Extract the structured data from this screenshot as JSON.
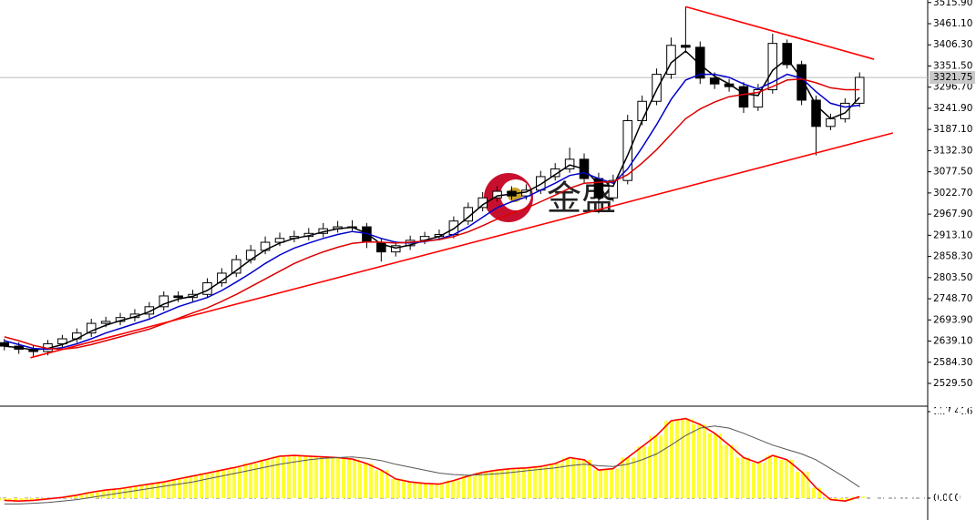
{
  "chart_data": [
    {
      "type": "candlestick",
      "watermark": "金盛",
      "xlim": [
        -0.3,
        63.7
      ],
      "ylim": [
        2472.9,
        3522.4
      ],
      "yticks": [
        {
          "value": 2529.5,
          "label": "2529.50"
        },
        {
          "value": 2584.3,
          "label": "2584.30"
        },
        {
          "value": 2639.1,
          "label": "2639.10"
        },
        {
          "value": 2693.9,
          "label": "2693.90"
        },
        {
          "value": 2748.7,
          "label": "2748.70"
        },
        {
          "value": 2803.5,
          "label": "2803.50"
        },
        {
          "value": 2858.3,
          "label": "2858.30"
        },
        {
          "value": 2913.1,
          "label": "2913.10"
        },
        {
          "value": 2967.9,
          "label": "2967.90"
        },
        {
          "value": 3022.7,
          "label": "3022.70"
        },
        {
          "value": 3077.5,
          "label": "3077.50"
        },
        {
          "value": 3132.3,
          "label": "3132.30"
        },
        {
          "value": 3187.1,
          "label": "3187.10"
        },
        {
          "value": 3241.9,
          "label": "3241.90"
        },
        {
          "value": 3296.7,
          "label": "3296.70"
        },
        {
          "value": 3351.5,
          "label": "3351.50"
        },
        {
          "value": 3406.3,
          "label": "3406.30"
        },
        {
          "value": 3461.1,
          "label": "3461.10"
        },
        {
          "value": 3515.9,
          "label": "3515.90"
        }
      ],
      "current_price": {
        "value": 3321.75,
        "label": "3321.75"
      },
      "open": [
        2635,
        2626,
        2618,
        2612,
        2632,
        2645,
        2660,
        2685,
        2690,
        2700,
        2709,
        2728,
        2756,
        2752,
        2760,
        2790,
        2815,
        2850,
        2874,
        2895,
        2905,
        2910,
        2918,
        2930,
        2935,
        2935,
        2895,
        2870,
        2886,
        2900,
        2910,
        2915,
        2950,
        2985,
        3010,
        3027,
        3015,
        3030,
        3065,
        3085,
        3110,
        3060,
        3010,
        3055,
        3210,
        3260,
        3330,
        3405,
        3400,
        3320,
        3305,
        3298,
        3245,
        3290,
        3410,
        3355,
        3263,
        3195,
        3215,
        3255
      ],
      "high": [
        2645,
        2636,
        2628,
        2642,
        2655,
        2672,
        2697,
        2702,
        2712,
        2722,
        2740,
        2768,
        2768,
        2772,
        2802,
        2828,
        2862,
        2888,
        2910,
        2920,
        2925,
        2932,
        2945,
        2950,
        2952,
        2945,
        2905,
        2898,
        2912,
        2922,
        2928,
        2962,
        2998,
        3025,
        3040,
        3040,
        3045,
        3080,
        3100,
        3140,
        3125,
        3075,
        3070,
        3225,
        3275,
        3345,
        3425,
        3505,
        3415,
        3335,
        3318,
        3310,
        3305,
        3435,
        3420,
        3365,
        3275,
        3228,
        3268,
        3335
      ],
      "low": [
        2615,
        2606,
        2600,
        2602,
        2622,
        2635,
        2650,
        2675,
        2680,
        2690,
        2698,
        2718,
        2740,
        2742,
        2750,
        2780,
        2805,
        2840,
        2864,
        2885,
        2895,
        2900,
        2908,
        2920,
        2925,
        2880,
        2845,
        2858,
        2875,
        2890,
        2900,
        2905,
        2940,
        2975,
        3000,
        3005,
        3005,
        3020,
        3055,
        3075,
        3048,
        2970,
        3000,
        3045,
        3198,
        3250,
        3318,
        3385,
        3305,
        3292,
        3285,
        3230,
        3235,
        3280,
        3345,
        3250,
        3120,
        3185,
        3205,
        3245
      ],
      "close": [
        2626,
        2618,
        2612,
        2632,
        2645,
        2660,
        2685,
        2690,
        2700,
        2709,
        2728,
        2756,
        2752,
        2760,
        2790,
        2815,
        2850,
        2874,
        2895,
        2905,
        2910,
        2918,
        2930,
        2935,
        2935,
        2895,
        2870,
        2886,
        2900,
        2910,
        2915,
        2950,
        2985,
        3010,
        3027,
        3015,
        3030,
        3065,
        3085,
        3110,
        3060,
        3010,
        3055,
        3210,
        3260,
        3330,
        3405,
        3400,
        3320,
        3305,
        3298,
        3245,
        3290,
        3410,
        3355,
        3263,
        3195,
        3215,
        3255,
        3322
      ],
      "series": [
        {
          "color": "#000000",
          "values": [
            2626,
            2622,
            2616,
            2620,
            2630,
            2645,
            2665,
            2680,
            2692,
            2702,
            2715,
            2735,
            2748,
            2755,
            2770,
            2795,
            2822,
            2850,
            2875,
            2893,
            2905,
            2912,
            2922,
            2930,
            2934,
            2918,
            2890,
            2880,
            2888,
            2900,
            2910,
            2930,
            2960,
            2992,
            3015,
            3020,
            3025,
            3045,
            3070,
            3095,
            3085,
            3045,
            3040,
            3120,
            3210,
            3290,
            3360,
            3390,
            3355,
            3325,
            3305,
            3280,
            3275,
            3340,
            3370,
            3320,
            3250,
            3215,
            3230,
            3270
          ]
        },
        {
          "color": "#0000cc",
          "values": [
            2640,
            2630,
            2620,
            2618,
            2622,
            2632,
            2645,
            2660,
            2672,
            2684,
            2696,
            2712,
            2728,
            2740,
            2752,
            2770,
            2792,
            2815,
            2840,
            2862,
            2880,
            2893,
            2905,
            2915,
            2923,
            2918,
            2905,
            2895,
            2893,
            2897,
            2903,
            2915,
            2935,
            2960,
            2985,
            3000,
            3012,
            3030,
            3048,
            3068,
            3075,
            3060,
            3048,
            3085,
            3140,
            3200,
            3265,
            3315,
            3330,
            3330,
            3322,
            3305,
            3292,
            3310,
            3330,
            3320,
            3285,
            3255,
            3245,
            3250
          ]
        },
        {
          "color": "#dd0000",
          "values": [
            2650,
            2640,
            2628,
            2620,
            2618,
            2622,
            2630,
            2640,
            2650,
            2660,
            2670,
            2684,
            2698,
            2712,
            2725,
            2742,
            2760,
            2780,
            2800,
            2820,
            2840,
            2856,
            2870,
            2882,
            2892,
            2896,
            2895,
            2893,
            2895,
            2898,
            2902,
            2910,
            2922,
            2938,
            2955,
            2970,
            2983,
            3000,
            3017,
            3035,
            3048,
            3050,
            3052,
            3070,
            3100,
            3135,
            3175,
            3215,
            3240,
            3258,
            3272,
            3278,
            3283,
            3298,
            3315,
            3318,
            3308,
            3295,
            3290,
            3290
          ]
        }
      ],
      "trendlines": [
        {
          "color": "#ff0000",
          "x": [
            47,
            60
          ],
          "y": [
            3505,
            3369
          ]
        },
        {
          "color": "#ff0000",
          "x": [
            1.8,
            61.3
          ],
          "y": [
            2596,
            3178
          ]
        }
      ]
    },
    {
      "type": "macd",
      "xlim": [
        -0.3,
        63.7
      ],
      "ylim": [
        -29.7,
        123.6
      ],
      "yticks": [
        {
          "value": 0,
          "label": "0.000"
        },
        117.416
      ],
      "histogram": {
        "color": "#ffff33",
        "outline": "#ff0000",
        "values": [
          -3,
          -4,
          -3,
          -1,
          1,
          4,
          8,
          11,
          13,
          16,
          19,
          22,
          26,
          30,
          34,
          38,
          42,
          47,
          52,
          57,
          58,
          57,
          56,
          55,
          53,
          47,
          38,
          26,
          22,
          20,
          19,
          24,
          30,
          35,
          38,
          40,
          41,
          43,
          47,
          55,
          52,
          38,
          40,
          55,
          70,
          85,
          105,
          108,
          100,
          88,
          72,
          55,
          48,
          58,
          52,
          36,
          14,
          -2,
          -4,
          2
        ]
      },
      "signal": {
        "color": "#555555",
        "values": [
          -8,
          -8,
          -7,
          -6,
          -4,
          -2,
          1,
          4,
          7,
          10,
          13,
          16,
          19,
          22,
          26,
          30,
          34,
          38,
          42,
          46,
          49,
          52,
          54,
          55,
          56,
          54,
          51,
          46,
          42,
          38,
          34,
          32,
          31,
          32,
          33,
          35,
          37,
          39,
          41,
          44,
          46,
          44,
          43,
          46,
          52,
          60,
          72,
          85,
          95,
          98,
          95,
          88,
          80,
          72,
          66,
          60,
          52,
          40,
          28,
          15
        ]
      }
    }
  ]
}
